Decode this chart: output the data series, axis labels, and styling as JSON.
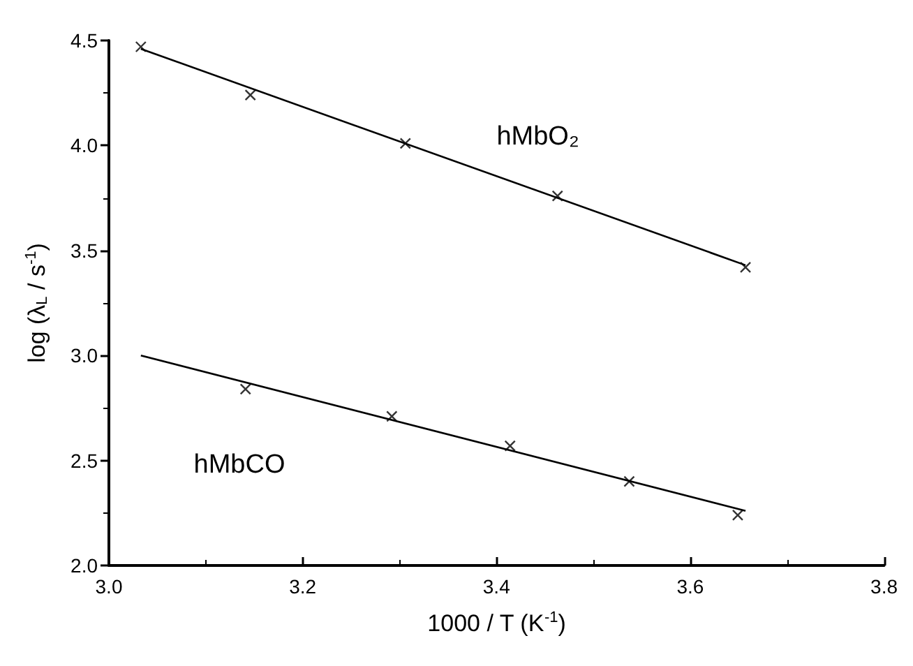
{
  "chart_data": {
    "type": "scatter",
    "xlabel": "1000 / T (K$^{-1}$)",
    "ylabel": "log (λ$_{L}$ / s$^{-1}$)",
    "series": [
      {
        "color": "#000000",
        "marker": "cross",
        "x": [
          3.033,
          3.146,
          3.306,
          3.463,
          3.657
        ],
        "values": [
          4.47,
          4.24,
          4.01,
          3.76,
          3.42
        ]
      },
      {
        "type": "line",
        "color": "#000000",
        "marker": "none",
        "x": [
          3.033,
          3.657
        ],
        "values": [
          4.46,
          3.43
        ]
      },
      {
        "color": "#000000",
        "marker": "cross",
        "x": [
          3.141,
          3.292,
          3.414,
          3.537,
          3.649
        ],
        "values": [
          2.84,
          2.71,
          2.57,
          2.4,
          2.24
        ]
      },
      {
        "type": "line",
        "color": "#000000",
        "marker": "none",
        "x": [
          3.033,
          3.657
        ],
        "values": [
          3.0,
          2.26
        ]
      }
    ],
    "annotations": [
      "hMbO₂",
      "hMbCO"
    ],
    "xlim": [
      3.0,
      3.8
    ],
    "xticks": [
      {
        "value": 3,
        "label": "3.0"
      },
      3.2,
      3.4,
      3.6,
      3.8
    ],
    "ylim": [
      2.0,
      4.5
    ],
    "yticks": [
      {
        "value": 2,
        "label": "2.0"
      },
      2.5,
      {
        "value": 3,
        "label": "3.0"
      },
      3.5,
      {
        "value": 4,
        "label": "4.0"
      },
      4.5
    ],
    "grid": false
  }
}
